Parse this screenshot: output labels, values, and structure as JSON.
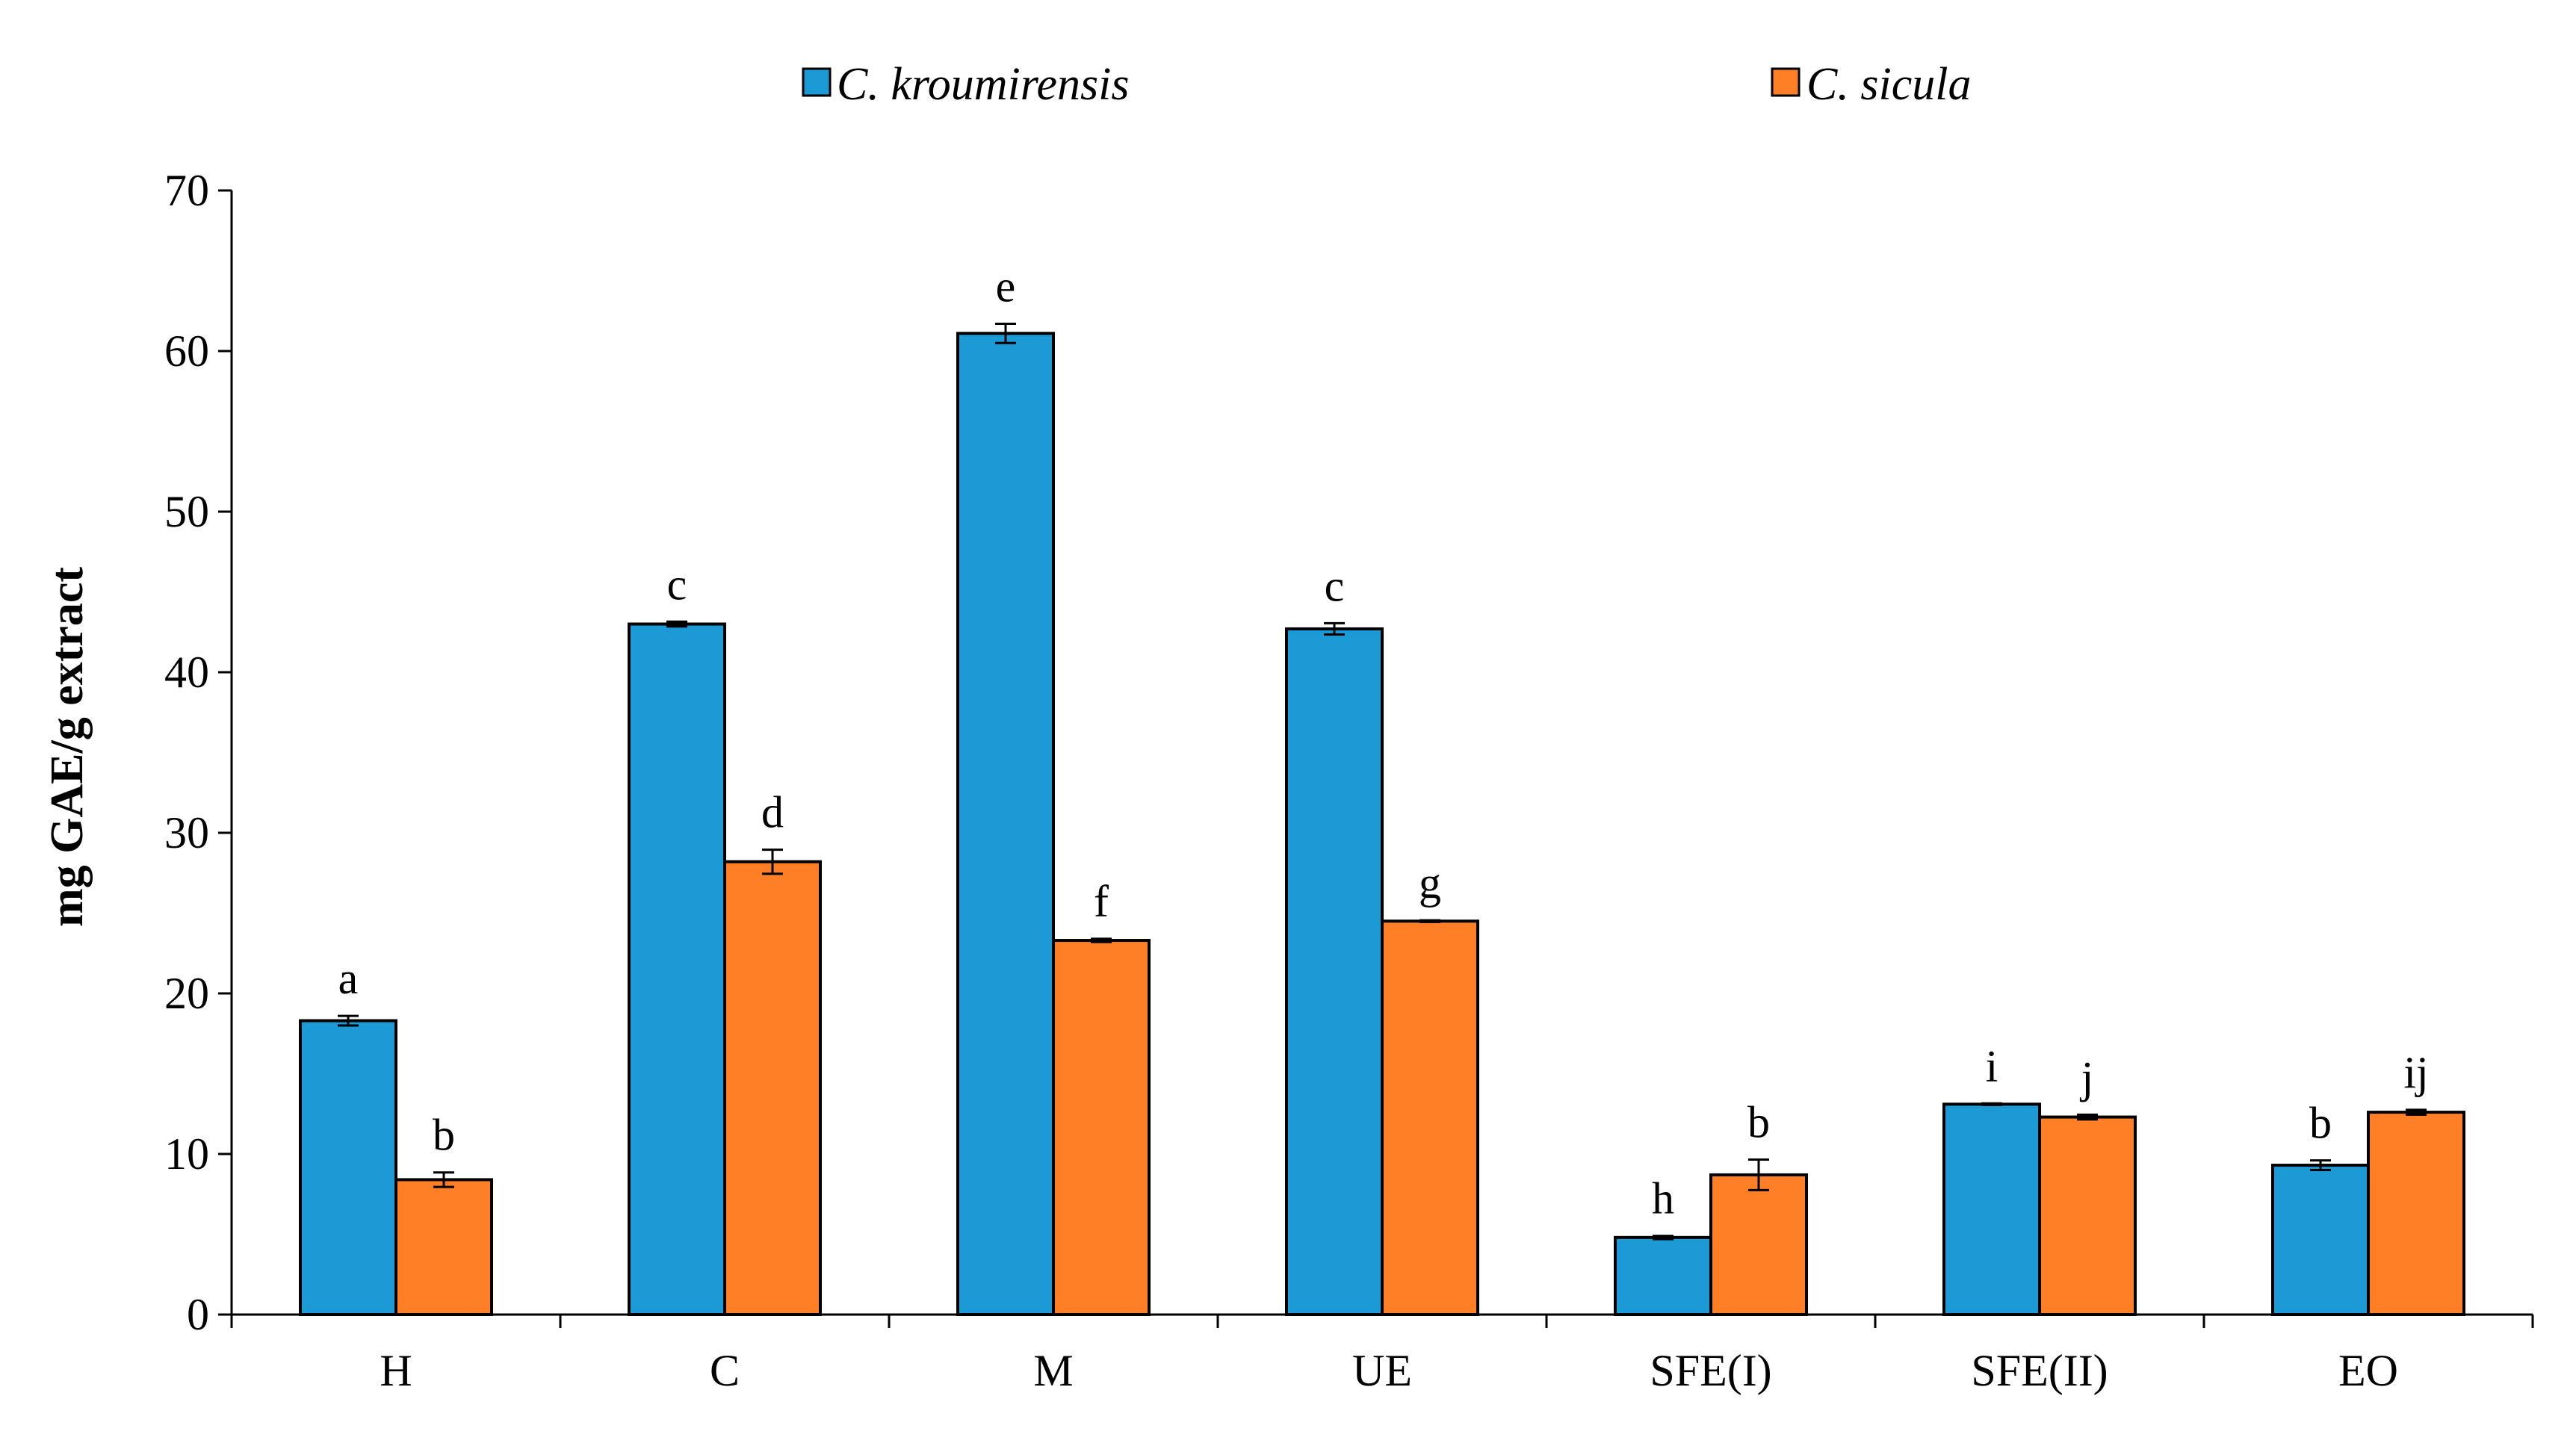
{
  "chart_data": {
    "type": "bar",
    "title": "",
    "xlabel": "",
    "ylabel": "mg  GAE/g extract",
    "ylim": [
      0,
      70
    ],
    "yticks": [
      0,
      10,
      20,
      30,
      40,
      50,
      60,
      70
    ],
    "grid": false,
    "legend_position": "top",
    "categories": [
      "H",
      "C",
      "M",
      "UE",
      "SFE(I)",
      "SFE(II)",
      "EO"
    ],
    "series": [
      {
        "name": "C. kroumirensis",
        "color": "#1B9AD6",
        "values": [
          18.3,
          43.0,
          61.1,
          42.7,
          4.8,
          13.1,
          9.3
        ],
        "errors": [
          0.3,
          0.15,
          0.6,
          0.35,
          0.1,
          0.05,
          0.3
        ],
        "labels": [
          "a",
          "c",
          "e",
          "c",
          "h",
          "i",
          "b"
        ]
      },
      {
        "name": "C. sicula",
        "color": "#FF7F27",
        "values": [
          8.4,
          28.2,
          23.3,
          24.5,
          8.7,
          12.3,
          12.6
        ],
        "errors": [
          0.45,
          0.75,
          0.1,
          0.05,
          0.95,
          0.15,
          0.15
        ],
        "labels": [
          "b",
          "d",
          "f",
          "g",
          "b",
          "j",
          "ij"
        ]
      }
    ]
  }
}
